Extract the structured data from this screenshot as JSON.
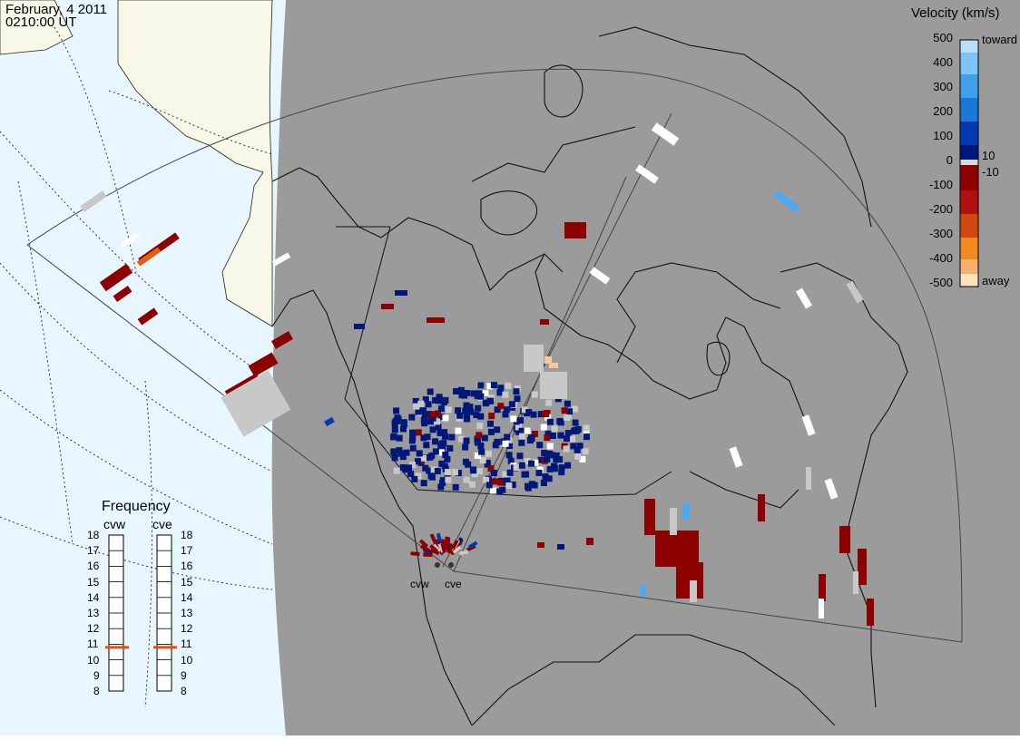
{
  "header": {
    "date": "February, 4 2011",
    "time": "0210:00 UT"
  },
  "legend": {
    "title": "Velocity (km/s)",
    "ticks": [
      "500",
      "400",
      "300",
      "200",
      "100",
      "0",
      "-100",
      "-200",
      "-300",
      "-400",
      "-500"
    ],
    "inner_ticks": [
      "10",
      "-10"
    ],
    "toward_label": "toward",
    "away_label": "away",
    "colors": [
      "#fde0c0",
      "#f8b070",
      "#f08a1e",
      "#e06010",
      "#c03010",
      "#8c0000",
      "#d8d8d8",
      "#00187a",
      "#0038b0",
      "#1a78d8",
      "#50a8f0",
      "#b8e0fc"
    ]
  },
  "frequency": {
    "title": "Frequency",
    "radars": [
      "cvw",
      "cve"
    ],
    "scale": [
      "18",
      "17",
      "16",
      "15",
      "14",
      "13",
      "12",
      "11",
      "10",
      "9",
      "8"
    ],
    "cvw_mhz": 10.8,
    "cve_mhz": 10.8
  },
  "stations": {
    "west": "cvw",
    "east": "cve"
  },
  "colors": {
    "land_night": "#9b9b9b",
    "land_day": "#f8f8e8",
    "ocean_day": "#e8f6ff",
    "marker": "#e05010"
  }
}
